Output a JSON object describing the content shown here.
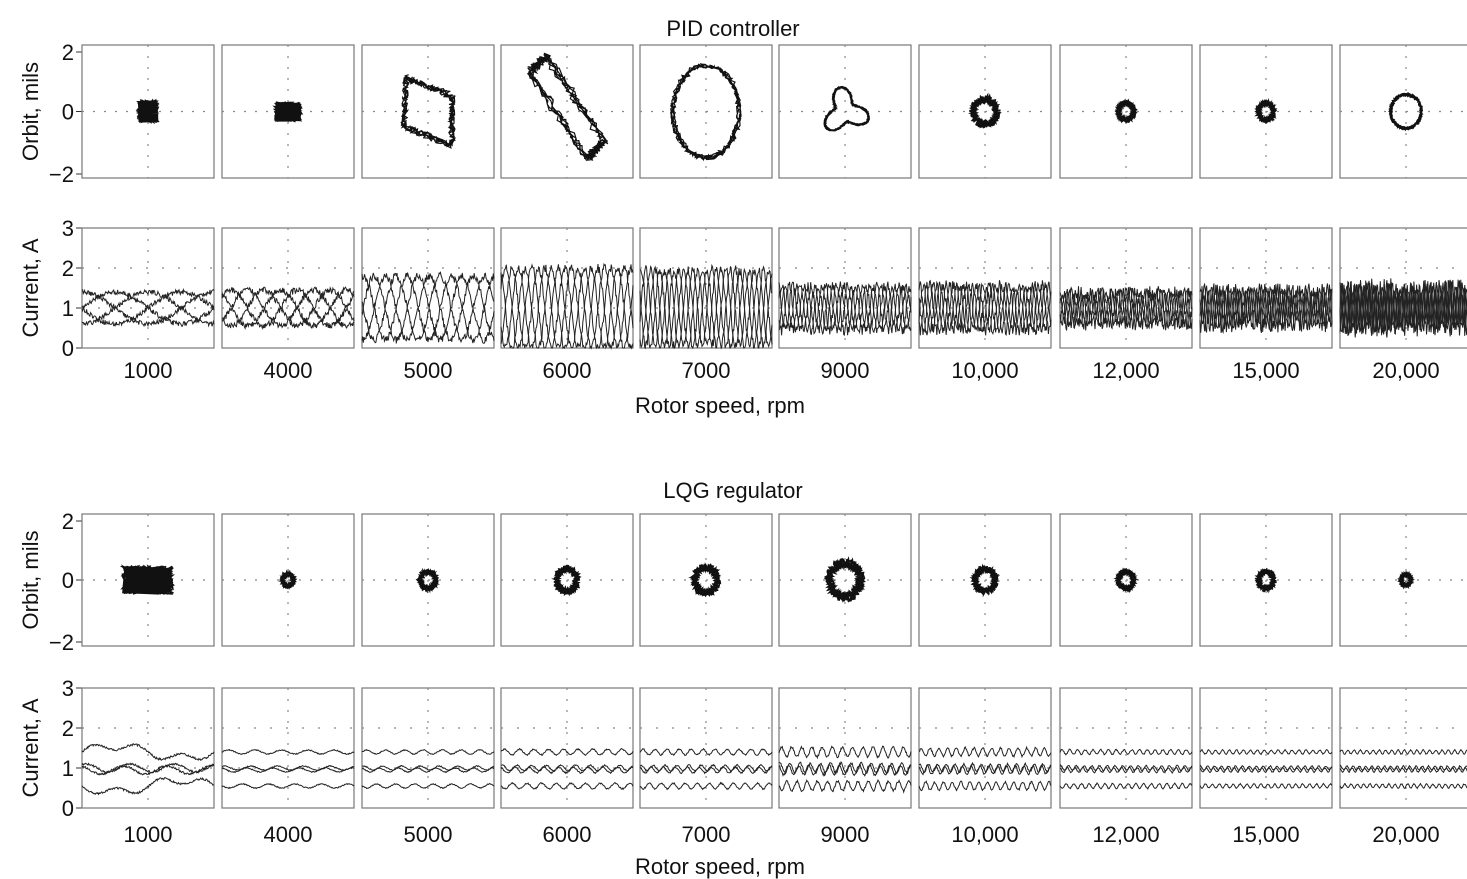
{
  "chart_data": [
    {
      "type": "small-multiples",
      "title": "PID controller",
      "xlabel": "Rotor speed, rpm",
      "speeds": [
        "1000",
        "4000",
        "5000",
        "6000",
        "7000",
        "9000",
        "10,000",
        "12,000",
        "15,000",
        "20,000"
      ],
      "orbit": {
        "ylabel": "Orbit, mils",
        "ylim": [
          -2,
          2
        ],
        "yticks": [
          "2",
          "0",
          "−2"
        ],
        "grid": "dotted",
        "shape": [
          "star",
          "scribble",
          "parallelogram",
          "tilted-rectangle",
          "oval",
          "lobed",
          "blob",
          "blob",
          "blob",
          "ring"
        ],
        "amplitude_mils": [
          0.3,
          0.4,
          1.2,
          1.8,
          1.5,
          0.7,
          0.45,
          0.3,
          0.3,
          0.55
        ]
      },
      "current": {
        "ylabel": "Current, A",
        "ylim": [
          0,
          3
        ],
        "yticks": [
          "3",
          "2",
          "1",
          "0"
        ],
        "grid": "dotted",
        "bias": 1,
        "oscillation_amplitude_A": [
          0.4,
          0.45,
          0.8,
          1.0,
          0.95,
          0.55,
          0.55,
          0.4,
          0.45,
          0.55
        ],
        "cycles_per_panel": [
          1,
          2,
          3,
          5,
          7,
          9,
          10,
          14,
          18,
          24
        ]
      }
    },
    {
      "type": "small-multiples",
      "title": "LQG regulator",
      "xlabel": "Rotor speed, rpm",
      "speeds": [
        "1000",
        "4000",
        "5000",
        "6000",
        "7000",
        "9000",
        "10,000",
        "12,000",
        "15,000",
        "20,000"
      ],
      "orbit": {
        "ylabel": "Orbit, mils",
        "ylim": [
          -2,
          2
        ],
        "yticks": [
          "2",
          "0",
          "−2"
        ],
        "grid": "dotted",
        "shape": [
          "wander",
          "blob",
          "blob",
          "blob",
          "blob",
          "blob",
          "blob",
          "blob",
          "blob",
          "blob"
        ],
        "amplitude_mils": [
          0.6,
          0.22,
          0.3,
          0.4,
          0.45,
          0.6,
          0.4,
          0.3,
          0.3,
          0.2
        ]
      },
      "current": {
        "ylabel": "Current, A",
        "ylim": [
          0,
          3
        ],
        "yticks": [
          "3",
          "2",
          "1",
          "0"
        ],
        "grid": "dotted",
        "levels_A": [
          1.4,
          1.0,
          0.95,
          0.55
        ],
        "ripple_A": [
          0.1,
          0.05,
          0.05,
          0.07,
          0.07,
          0.12,
          0.1,
          0.06,
          0.05,
          0.05
        ]
      }
    }
  ]
}
